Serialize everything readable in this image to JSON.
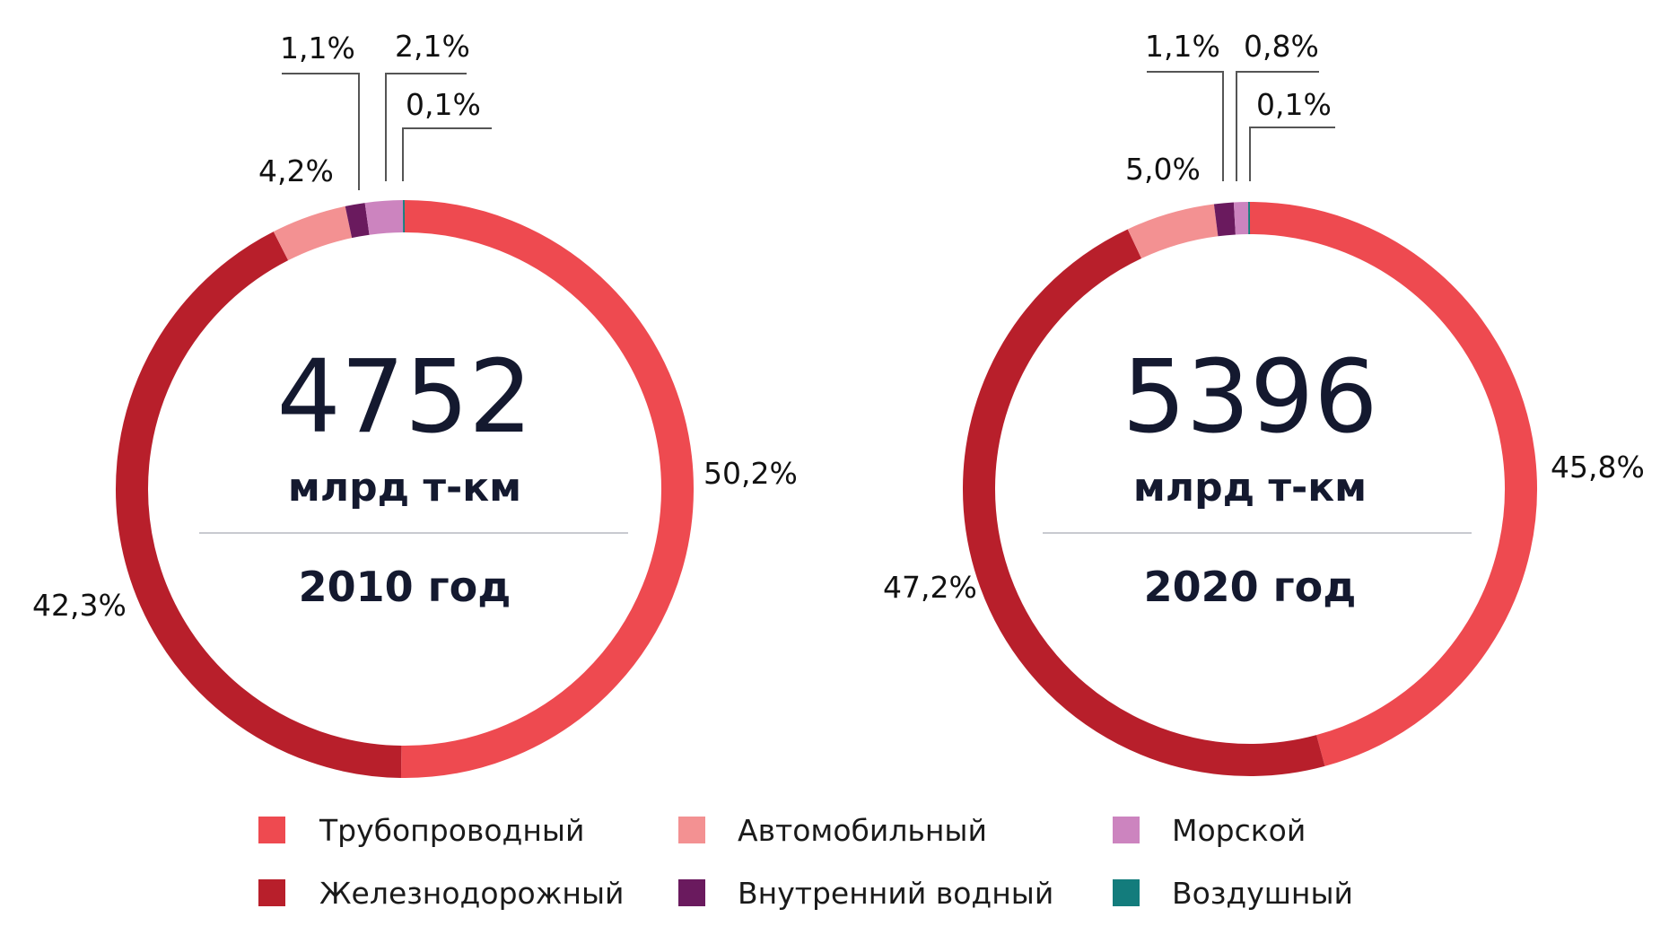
{
  "chart_data": [
    {
      "type": "donut",
      "total": "4752",
      "unit": "млрд т-км",
      "year_label": "2010 год",
      "slices": [
        {
          "category": "Трубопроводный",
          "value": 50.2,
          "label": "50,2%"
        },
        {
          "category": "Железнодорожный",
          "value": 42.3,
          "label": "42,3%"
        },
        {
          "category": "Автомобильный",
          "value": 4.2,
          "label": "4,2%"
        },
        {
          "category": "Внутренний водный",
          "value": 1.1,
          "label": "1,1%"
        },
        {
          "category": "Морской",
          "value": 2.1,
          "label": "2,1%"
        },
        {
          "category": "Воздушный",
          "value": 0.1,
          "label": "0,1%"
        }
      ]
    },
    {
      "type": "donut",
      "total": "5396",
      "unit": "млрд т-км",
      "year_label": "2020 год",
      "slices": [
        {
          "category": "Трубопроводный",
          "value": 45.8,
          "label": "45,8%"
        },
        {
          "category": "Железнодорожный",
          "value": 47.2,
          "label": "47,2%"
        },
        {
          "category": "Автомобильный",
          "value": 5.0,
          "label": "5,0%"
        },
        {
          "category": "Внутренний водный",
          "value": 1.1,
          "label": "1,1%"
        },
        {
          "category": "Морской",
          "value": 0.8,
          "label": "0,8%"
        },
        {
          "category": "Воздушный",
          "value": 0.1,
          "label": "0,1%"
        }
      ]
    }
  ],
  "legend": [
    {
      "name": "Трубопроводный",
      "color": "#ee4a50"
    },
    {
      "name": "Железнодорожный",
      "color": "#b81f2b"
    },
    {
      "name": "Автомобильный",
      "color": "#f39192"
    },
    {
      "name": "Внутренний водный",
      "color": "#6a1a5e"
    },
    {
      "name": "Морской",
      "color": "#cc84bf"
    },
    {
      "name": "Воздушный",
      "color": "#137c7c"
    }
  ],
  "colors": {
    "divider": "#c8cad0",
    "leader": "#555555",
    "text_dark": "#14192f"
  }
}
